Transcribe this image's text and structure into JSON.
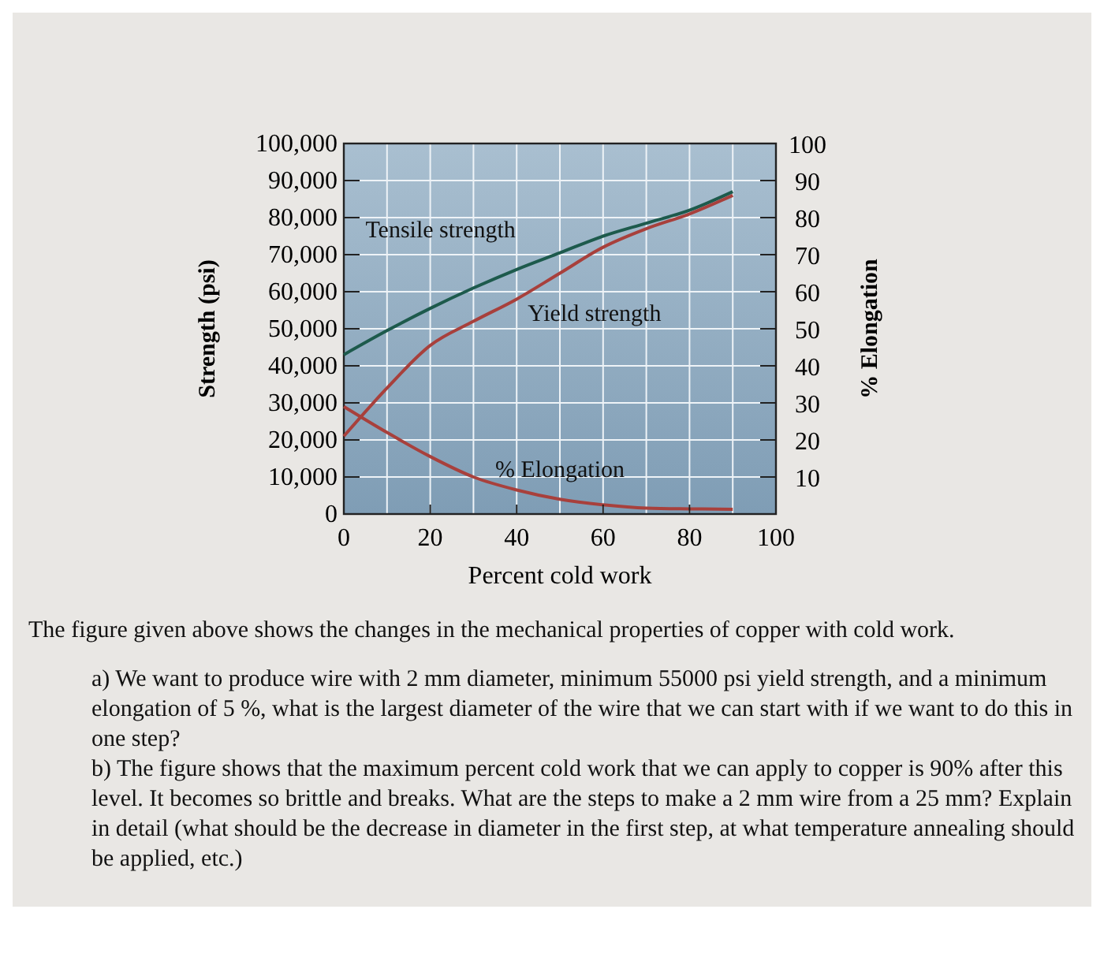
{
  "chart_data": {
    "type": "line",
    "xlabel": "Percent cold work",
    "ylabel": "Strength (psi)",
    "y2label": "% Elongation",
    "x": [
      0,
      10,
      20,
      30,
      40,
      50,
      60,
      70,
      80,
      90
    ],
    "series": [
      {
        "name": "Tensile strength",
        "color": "#1d5a4c",
        "values": [
          43000,
          49500,
          55500,
          61000,
          66000,
          70500,
          75000,
          78500,
          82000,
          87000
        ]
      },
      {
        "name": "Yield strength",
        "color": "#a8403c",
        "values": [
          21000,
          34000,
          45500,
          52000,
          58000,
          65000,
          72000,
          77000,
          81000,
          86000
        ]
      },
      {
        "name": "% Elongation",
        "color": "#a8403c",
        "axis": "y2",
        "values": [
          29,
          22,
          15.5,
          10,
          6.5,
          4,
          2.5,
          1.6,
          1.4,
          1.3
        ]
      }
    ],
    "xlim": [
      0,
      100
    ],
    "xticks": [
      0,
      20,
      40,
      60,
      80,
      100
    ],
    "ylim": [
      0,
      100000
    ],
    "yticks": [
      0,
      {
        "value": 10000,
        "label": "10,000"
      },
      {
        "value": 20000,
        "label": "20,000"
      },
      {
        "value": 30000,
        "label": "30,000"
      },
      {
        "value": 40000,
        "label": "40,000"
      },
      {
        "value": 50000,
        "label": "50,000"
      },
      {
        "value": 60000,
        "label": "60,000"
      },
      {
        "value": 70000,
        "label": "70,000"
      },
      {
        "value": 80000,
        "label": "80,000"
      },
      {
        "value": 90000,
        "label": "90,000"
      },
      {
        "value": 100000,
        "label": "100,000"
      }
    ],
    "y2lim": [
      0,
      100
    ],
    "y2ticks": [
      10,
      20,
      30,
      40,
      50,
      60,
      70,
      80,
      90,
      100
    ],
    "grid": true,
    "line_style": "solid",
    "annotations": [
      "The figure given above shows the changes in the mechanical properties of copper with cold work.",
      "a) We want to produce wire with 2 mm diameter, minimum 55000 psi yield strength, and a minimum elongation of 5 %, what is the largest diameter of the wire that we can start with if we want to do this in one step?",
      "b) The figure shows that the maximum percent cold work that we can apply to copper is 90% after this level. It becomes so brittle and breaks. What are the steps to make a 2 mm wire from a 25 mm? Explain in detail (what should be the decrease in diameter in the first step, at what temperature annealing should be applied, etc.)"
    ]
  }
}
